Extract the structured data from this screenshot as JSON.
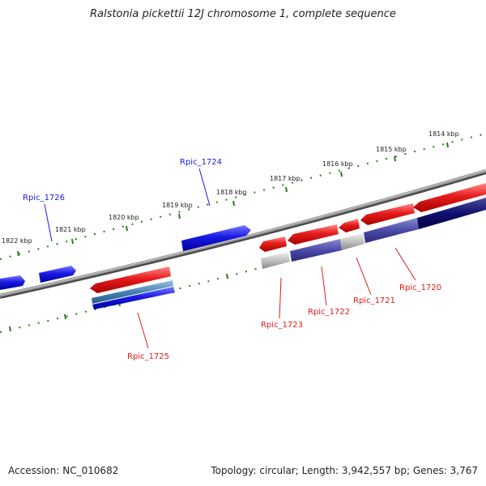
{
  "title": "Ralstonia pickettii 12J chromosome 1, complete sequence",
  "footer": {
    "accession": "Accession: NC_010682",
    "summary": "Topology: circular; Length: 3,942,557 bp; Genes: 3,767"
  },
  "ruler_labels": [
    "1814 kbp",
    "1815 kbp",
    "1816 kbp",
    "1817 kbp",
    "1818 kbp",
    "1819 kbp",
    "1820 kbp",
    "1821 kbp",
    "1822 kbp"
  ],
  "gene_labels": {
    "rpic_1720": "Rpic_1720",
    "rpic_1721": "Rpic_1721",
    "rpic_1722": "Rpic_1722",
    "rpic_1723": "Rpic_1723",
    "rpic_1724": "Rpic_1724",
    "rpic_1725": "Rpic_1725",
    "rpic_1726": "Rpic_1726"
  },
  "colors": {
    "forward_gene": "#e21a1a",
    "reverse_gene": "#1a1ae2",
    "cds_blue": "#4a4aa8",
    "rna_steel": "#4682b4",
    "pseudo_gray": "#b8b8b8",
    "backbone": "#808080",
    "ruler_tick": "#2e7d1e"
  }
}
